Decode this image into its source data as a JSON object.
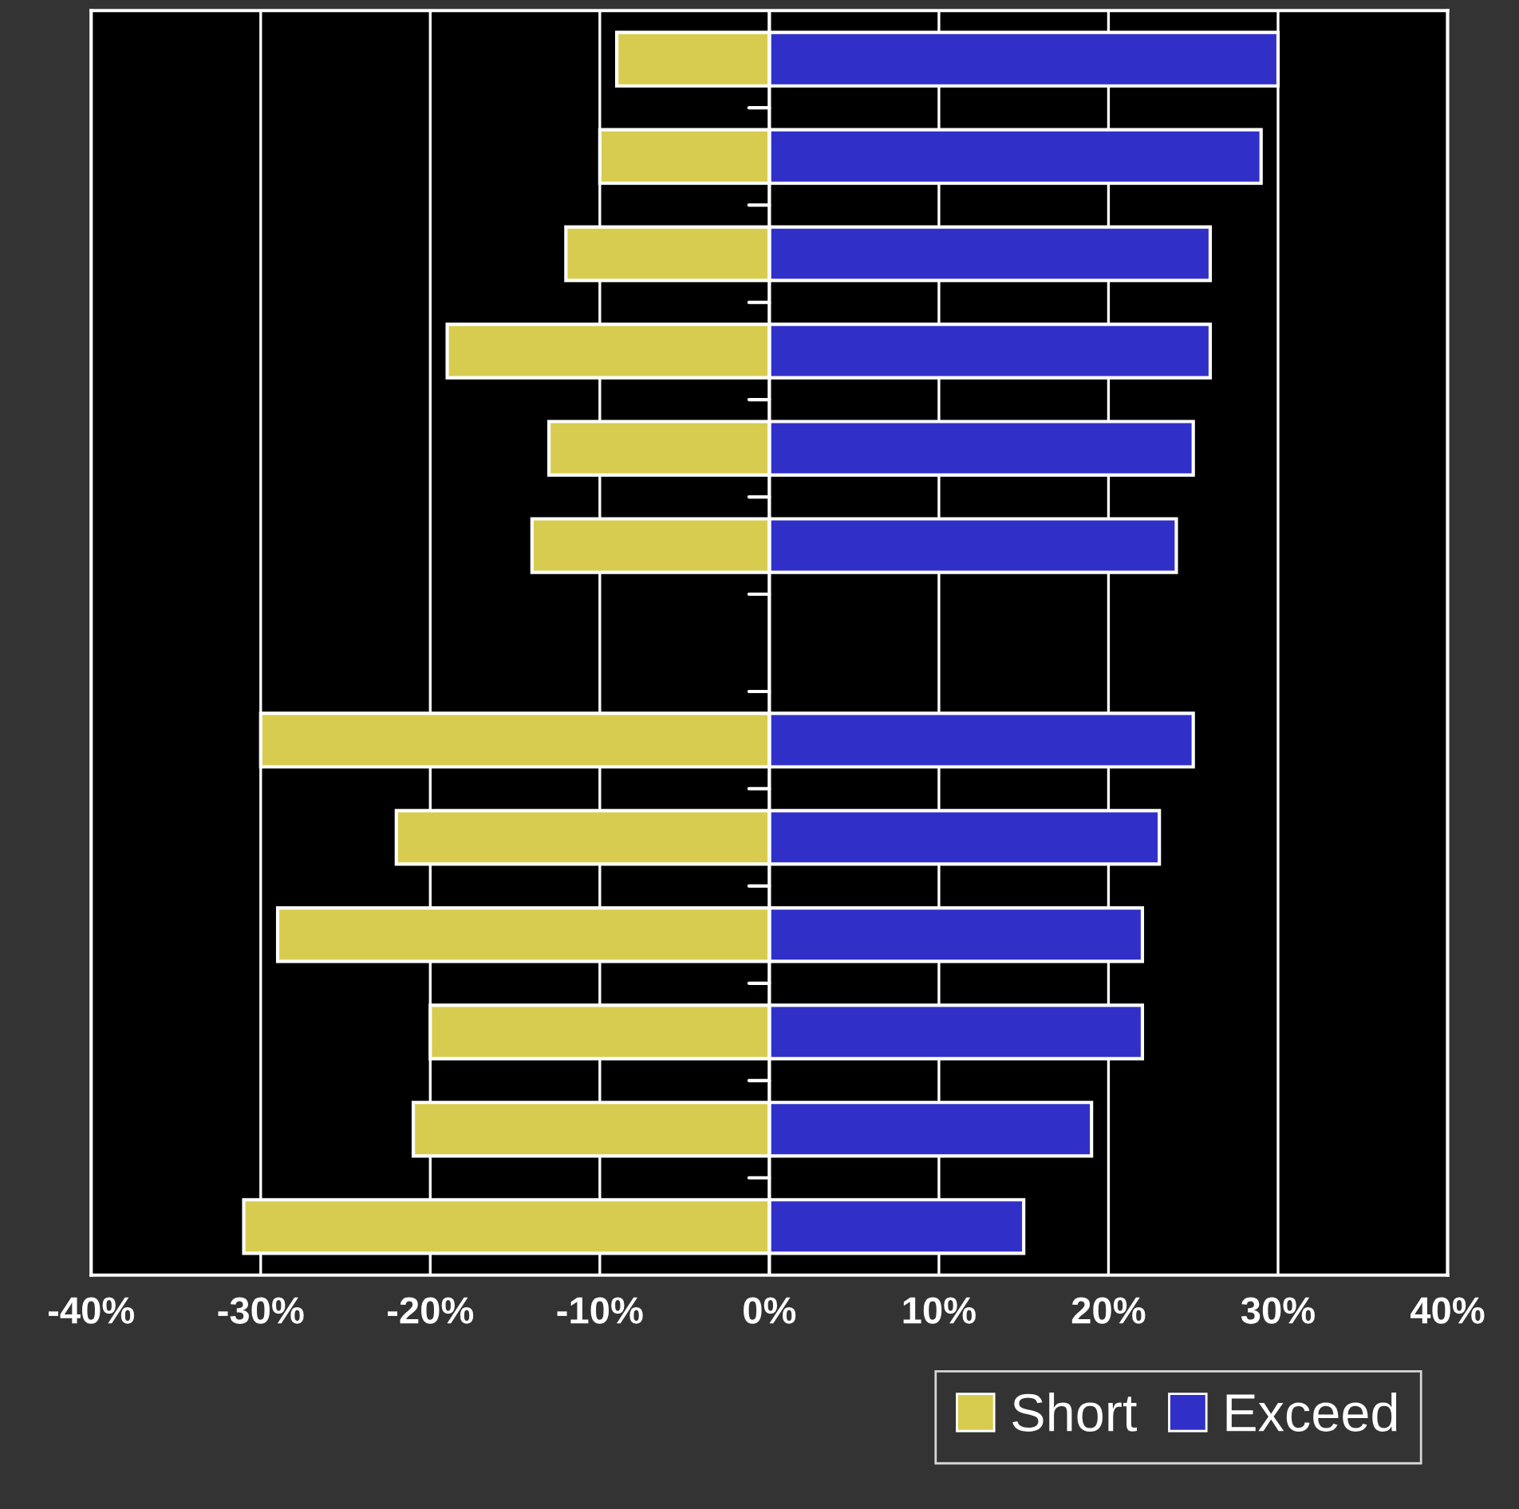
{
  "chart_data": {
    "type": "bar",
    "orientation": "horizontal",
    "stacked": true,
    "categories": [
      null,
      null,
      null,
      null,
      null,
      null,
      null,
      null,
      null,
      null,
      null,
      null,
      null
    ],
    "series": [
      {
        "name": "Short",
        "color": "#d8cc50",
        "values": [
          -9,
          -10,
          -12,
          -19,
          -13,
          -14,
          null,
          -30,
          -22,
          -29,
          -20,
          -21,
          -31
        ]
      },
      {
        "name": "Exceed",
        "color": "#3030c8",
        "values": [
          30,
          29,
          26,
          26,
          25,
          24,
          null,
          25,
          23,
          22,
          22,
          19,
          15
        ]
      }
    ],
    "xlim": [
      -40,
      40
    ],
    "xticks": [
      {
        "value": -40,
        "label": "-40%"
      },
      {
        "value": -30,
        "label": "-30%"
      },
      {
        "value": -20,
        "label": "-20%"
      },
      {
        "value": -10,
        "label": "-10%"
      },
      {
        "value": 0,
        "label": "0%"
      },
      {
        "value": 10,
        "label": "10%"
      },
      {
        "value": 20,
        "label": "20%"
      },
      {
        "value": 30,
        "label": "30%"
      },
      {
        "value": 40,
        "label": "40%"
      }
    ],
    "grid": "x",
    "legend": "bottom right",
    "tick_labels": "x"
  }
}
